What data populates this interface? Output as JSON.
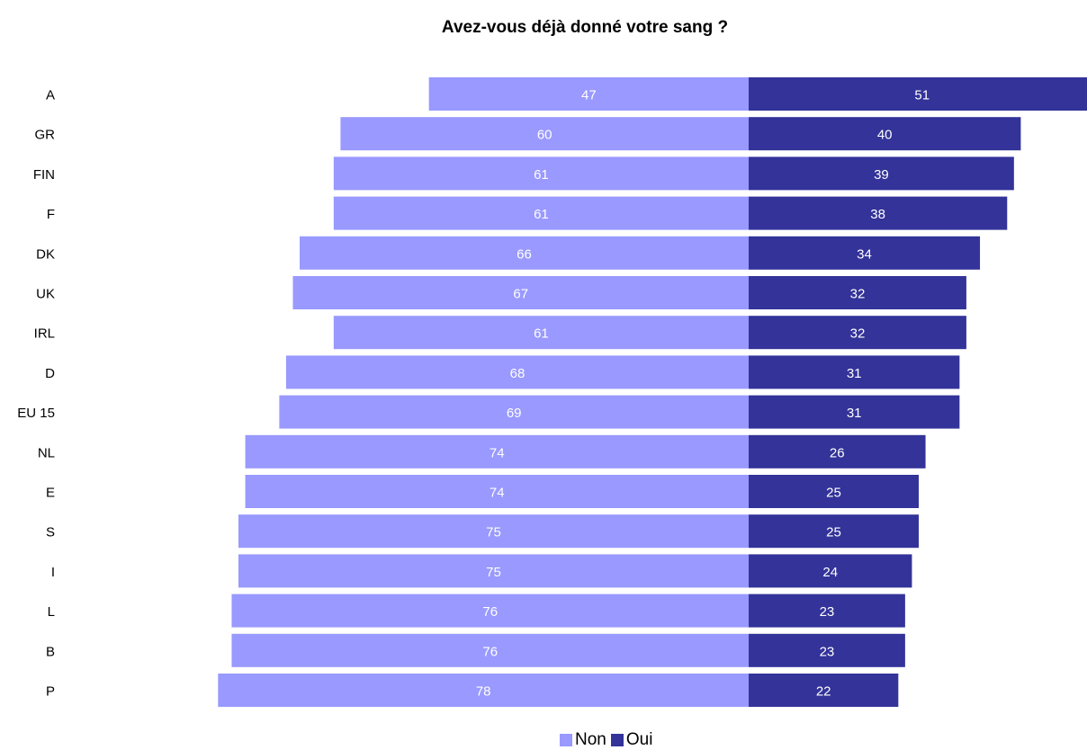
{
  "chart_data": {
    "type": "bar",
    "orientation": "horizontal-diverging",
    "title": "Avez-vous déjà donné votre sang ?",
    "categories": [
      "A",
      "GR",
      "FIN",
      "F",
      "DK",
      "UK",
      "IRL",
      "D",
      "EU 15",
      "NL",
      "E",
      "S",
      "I",
      "L",
      "B",
      "P"
    ],
    "series": [
      {
        "name": "Non",
        "color": "#9999ff",
        "direction": "left",
        "values": [
          47,
          60,
          61,
          61,
          66,
          67,
          61,
          68,
          69,
          74,
          74,
          75,
          75,
          76,
          76,
          78
        ]
      },
      {
        "name": "Oui",
        "color": "#333399",
        "direction": "right",
        "values": [
          51,
          40,
          39,
          38,
          34,
          32,
          32,
          31,
          31,
          26,
          25,
          25,
          24,
          23,
          23,
          22
        ]
      }
    ],
    "legend_position": "bottom",
    "grid": false
  }
}
